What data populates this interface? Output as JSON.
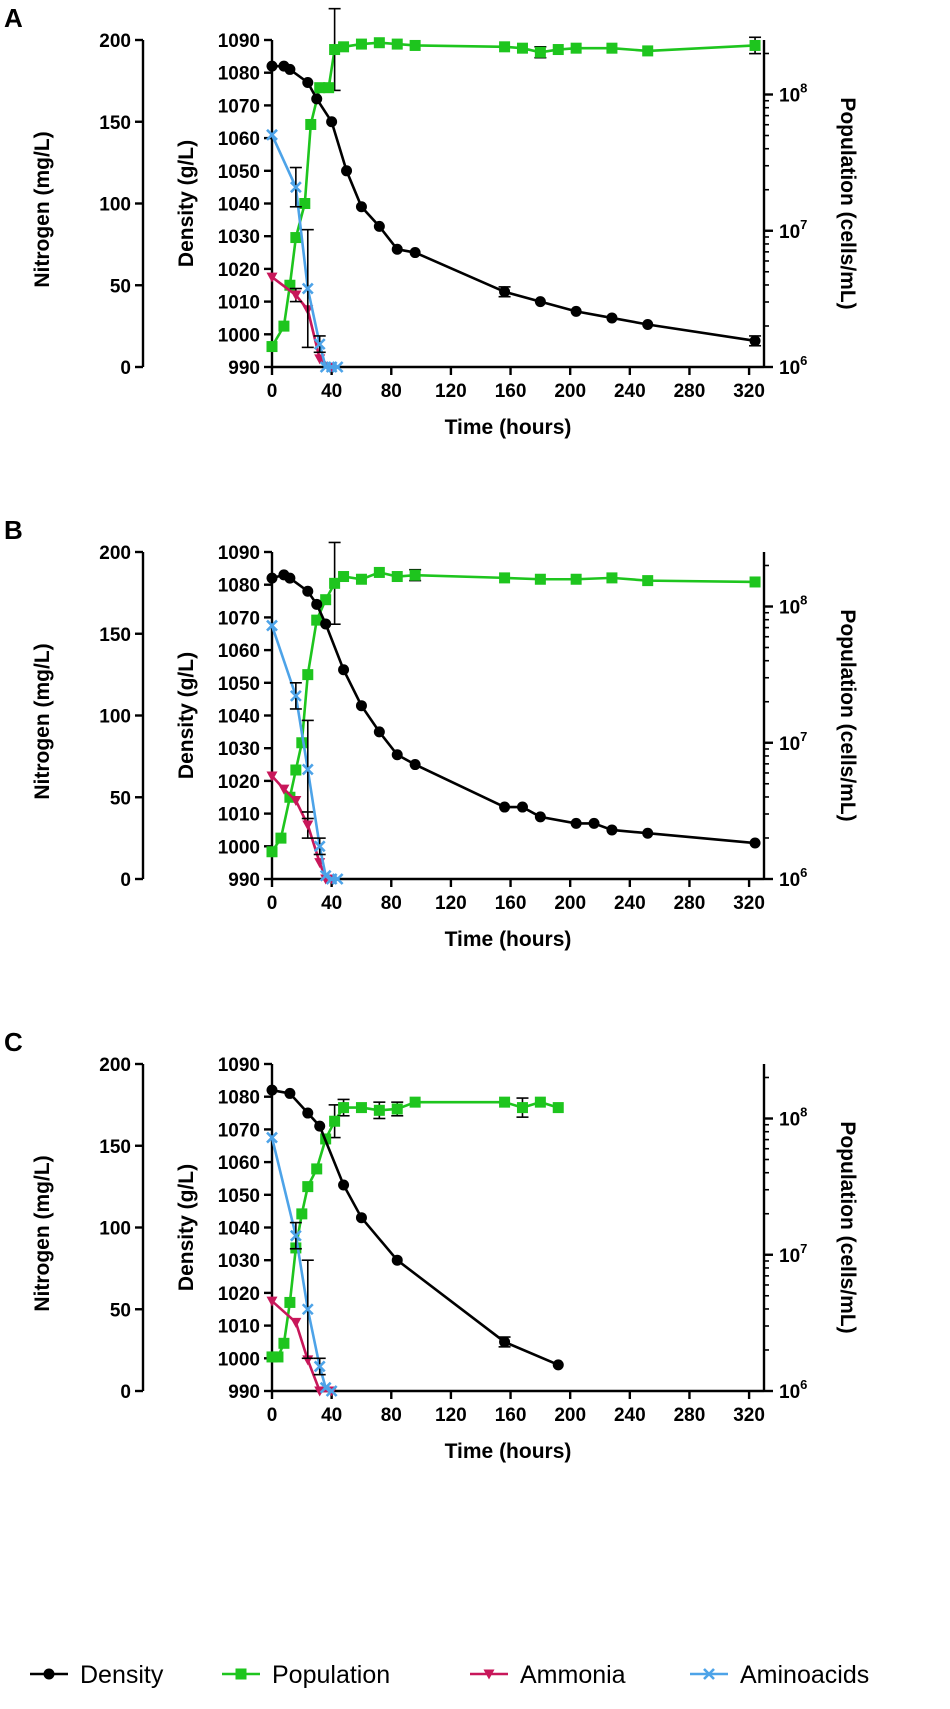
{
  "legend": [
    {
      "key": "density",
      "label": "Density",
      "color": "#000000",
      "marker": "circle"
    },
    {
      "key": "population",
      "label": "Population",
      "color": "#1ec51e",
      "marker": "square"
    },
    {
      "key": "ammonia",
      "label": "Ammonia",
      "color": "#c8175a",
      "marker": "triangle-down"
    },
    {
      "key": "aminoacids",
      "label": "Aminoacids",
      "color": "#4da3e8",
      "marker": "x"
    }
  ],
  "chart_data": [
    {
      "panel": "A",
      "type": "line",
      "xlabel": "Time (hours)",
      "xlim": [
        0,
        330
      ],
      "xticks": [
        0,
        40,
        80,
        120,
        160,
        200,
        240,
        280,
        320
      ],
      "ylabel_left": "Nitrogen (mg/L)",
      "ylim_left": [
        0,
        200
      ],
      "yticks_left": [
        0,
        50,
        100,
        150,
        200
      ],
      "ylabel_density": "Density (g/L)",
      "ylim_density": [
        990,
        1090
      ],
      "yticks_density": [
        990,
        1000,
        1010,
        1020,
        1030,
        1040,
        1050,
        1060,
        1070,
        1080,
        1090
      ],
      "ylabel_right": "Population (cells/mL)",
      "ylim_right_log10": [
        6,
        8.4
      ],
      "yticks_right": [
        {
          "base": "10",
          "exp": "6",
          "log": 6
        },
        {
          "base": "10",
          "exp": "7",
          "log": 7
        },
        {
          "base": "10",
          "exp": "8",
          "log": 8
        }
      ],
      "series": {
        "density": {
          "x": [
            0,
            8,
            12,
            24,
            30,
            40,
            50,
            60,
            72,
            84,
            96,
            156,
            180,
            204,
            228,
            252,
            324
          ],
          "y": [
            1082,
            1082,
            1081,
            1077,
            1072,
            1065,
            1050,
            1039,
            1033,
            1026,
            1025,
            1013,
            1010,
            1007,
            1005,
            1003,
            998
          ],
          "err": [
            0,
            0,
            0,
            0,
            0,
            0,
            0,
            0,
            0,
            0,
            0,
            1.5,
            0,
            0,
            0,
            0,
            1.5
          ]
        },
        "population": {
          "x": [
            0,
            8,
            12,
            16,
            22,
            26,
            32,
            38,
            42,
            48,
            60,
            72,
            84,
            96,
            156,
            168,
            180,
            192,
            204,
            228,
            252,
            324
          ],
          "log": [
            6.15,
            6.3,
            6.6,
            6.95,
            7.2,
            7.78,
            8.05,
            8.05,
            8.33,
            8.35,
            8.37,
            8.38,
            8.37,
            8.36,
            8.35,
            8.34,
            8.31,
            8.33,
            8.34,
            8.34,
            8.32,
            8.36
          ],
          "err_log": [
            0,
            0,
            0,
            0,
            0,
            0,
            0,
            0,
            0.3,
            0,
            0,
            0,
            0,
            0,
            0,
            0,
            0.04,
            0,
            0,
            0,
            0,
            0.06
          ]
        },
        "ammonia": {
          "x": [
            0,
            16,
            24,
            32,
            40
          ],
          "y": [
            55,
            44,
            35,
            5,
            0
          ],
          "err": [
            0,
            4,
            0,
            0,
            0
          ]
        },
        "aminoacids": {
          "x": [
            0,
            16,
            24,
            32,
            36,
            40,
            44
          ],
          "y": [
            142,
            110,
            48,
            14,
            0,
            0,
            0
          ],
          "err": [
            0,
            12,
            36,
            5,
            0,
            0,
            0
          ]
        }
      }
    },
    {
      "panel": "B",
      "type": "line",
      "xlabel": "Time (hours)",
      "xlim": [
        0,
        330
      ],
      "xticks": [
        0,
        40,
        80,
        120,
        160,
        200,
        240,
        280,
        320
      ],
      "ylabel_left": "Nitrogen (mg/L)",
      "ylim_left": [
        0,
        200
      ],
      "yticks_left": [
        0,
        50,
        100,
        150,
        200
      ],
      "ylabel_density": "Density (g/L)",
      "ylim_density": [
        990,
        1090
      ],
      "yticks_density": [
        990,
        1000,
        1010,
        1020,
        1030,
        1040,
        1050,
        1060,
        1070,
        1080,
        1090
      ],
      "ylabel_right": "Population (cells/mL)",
      "ylim_right_log10": [
        6,
        8.4
      ],
      "yticks_right": [
        {
          "base": "10",
          "exp": "6",
          "log": 6
        },
        {
          "base": "10",
          "exp": "7",
          "log": 7
        },
        {
          "base": "10",
          "exp": "8",
          "log": 8
        }
      ],
      "series": {
        "density": {
          "x": [
            0,
            8,
            12,
            24,
            30,
            36,
            48,
            60,
            72,
            84,
            96,
            156,
            168,
            180,
            204,
            216,
            228,
            252,
            324
          ],
          "y": [
            1082,
            1083,
            1082,
            1078,
            1074,
            1068,
            1054,
            1043,
            1035,
            1028,
            1025,
            1012,
            1012,
            1009,
            1007,
            1007,
            1005,
            1004,
            1001
          ],
          "err": [
            0,
            0,
            0,
            0,
            0,
            0,
            0,
            0,
            0,
            0,
            0,
            0,
            0,
            0,
            0,
            0,
            0,
            0,
            0
          ]
        },
        "population": {
          "x": [
            0,
            6,
            12,
            16,
            20,
            24,
            30,
            36,
            42,
            48,
            60,
            72,
            84,
            96,
            156,
            180,
            204,
            228,
            252,
            324
          ],
          "log": [
            6.2,
            6.3,
            6.6,
            6.8,
            7.0,
            7.5,
            7.9,
            8.05,
            8.17,
            8.22,
            8.2,
            8.25,
            8.22,
            8.23,
            8.21,
            8.2,
            8.2,
            8.21,
            8.19,
            8.18
          ],
          "err_log": [
            0,
            0,
            0,
            0,
            0,
            0,
            0,
            0,
            0.3,
            0,
            0,
            0,
            0,
            0.04,
            0,
            0,
            0,
            0,
            0,
            0
          ]
        },
        "ammonia": {
          "x": [
            0,
            8,
            16,
            24,
            32,
            36,
            40
          ],
          "y": [
            63,
            55,
            48,
            33,
            10,
            0,
            0
          ],
          "err": [
            0,
            0,
            0,
            8,
            0,
            0,
            0
          ]
        },
        "aminoacids": {
          "x": [
            0,
            16,
            24,
            32,
            36,
            40,
            44
          ],
          "y": [
            155,
            112,
            67,
            20,
            2,
            0,
            0
          ],
          "err": [
            0,
            8,
            30,
            5,
            0,
            0,
            0
          ]
        }
      }
    },
    {
      "panel": "C",
      "type": "line",
      "xlabel": "Time (hours)",
      "xlim": [
        0,
        330
      ],
      "xticks": [
        0,
        40,
        80,
        120,
        160,
        200,
        240,
        280,
        320
      ],
      "ylabel_left": "Nitrogen (mg/L)",
      "ylim_left": [
        0,
        200
      ],
      "yticks_left": [
        0,
        50,
        100,
        150,
        200
      ],
      "ylabel_density": "Density (g/L)",
      "ylim_density": [
        990,
        1090
      ],
      "yticks_density": [
        990,
        1000,
        1010,
        1020,
        1030,
        1040,
        1050,
        1060,
        1070,
        1080,
        1090
      ],
      "ylabel_right": "Population (cells/mL)",
      "ylim_right_log10": [
        6,
        8.4
      ],
      "yticks_right": [
        {
          "base": "10",
          "exp": "6",
          "log": 6
        },
        {
          "base": "10",
          "exp": "7",
          "log": 7
        },
        {
          "base": "10",
          "exp": "8",
          "log": 8
        }
      ],
      "series": {
        "density": {
          "x": [
            0,
            12,
            24,
            32,
            48,
            60,
            84,
            156,
            192
          ],
          "y": [
            1082,
            1081,
            1075,
            1071,
            1053,
            1043,
            1030,
            1005,
            998
          ],
          "err": [
            0,
            0,
            0,
            0,
            0,
            0,
            0,
            1.5,
            0
          ]
        },
        "population": {
          "x": [
            0,
            4,
            8,
            12,
            16,
            20,
            24,
            30,
            36,
            42,
            48,
            60,
            72,
            84,
            96,
            156,
            168,
            180,
            192
          ],
          "log": [
            6.25,
            6.25,
            6.35,
            6.65,
            7.05,
            7.3,
            7.5,
            7.63,
            7.85,
            7.98,
            8.08,
            8.08,
            8.06,
            8.07,
            8.12,
            8.12,
            8.08,
            8.12,
            8.08
          ],
          "err_log": [
            0,
            0,
            0,
            0,
            0,
            0,
            0,
            0,
            0,
            0.12,
            0.06,
            0,
            0.06,
            0.05,
            0,
            0,
            0.07,
            0,
            0
          ]
        },
        "ammonia": {
          "x": [
            0,
            16,
            24,
            32,
            40
          ],
          "y": [
            55,
            42,
            19,
            0,
            0
          ],
          "err": [
            0,
            0,
            0,
            0,
            0
          ]
        },
        "aminoacids": {
          "x": [
            0,
            16,
            24,
            32,
            36,
            40
          ],
          "y": [
            155,
            95,
            50,
            15,
            2,
            0
          ],
          "err": [
            0,
            8,
            30,
            5,
            0,
            0
          ]
        }
      }
    }
  ]
}
